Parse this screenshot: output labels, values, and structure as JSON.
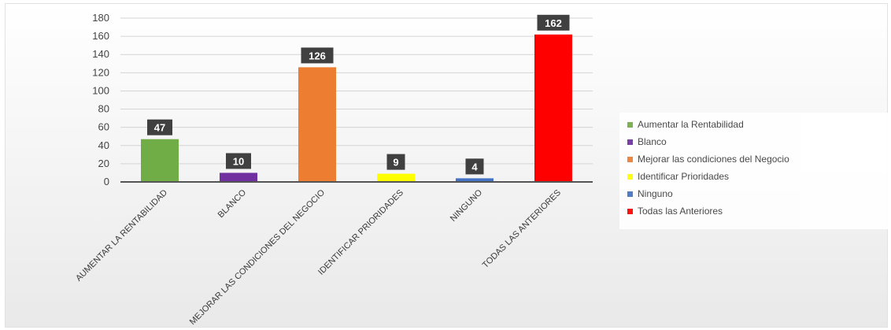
{
  "chart_data": {
    "type": "bar",
    "categories": [
      "AUMENTAR LA RENTABILIDAD",
      "BLANCO",
      "MEJORAR LAS CONDICIONES DEL NEGOCIO",
      "IDENTIFICAR PRIORIDADES",
      "NINGUNO",
      "TODAS LAS ANTERIORES"
    ],
    "values": [
      47,
      10,
      126,
      9,
      4,
      162
    ],
    "colors": [
      "#70ad47",
      "#7030a0",
      "#ed7d31",
      "#ffff00",
      "#4472c4",
      "#ff0000"
    ],
    "ylim": [
      0,
      180
    ],
    "yticks": [
      0,
      20,
      40,
      60,
      80,
      100,
      120,
      140,
      160,
      180
    ],
    "ytick_labels": [
      "0",
      "20",
      "40",
      "60",
      "80",
      "100",
      "120",
      "140",
      "160",
      "180"
    ],
    "data_labels": [
      "47",
      "10",
      "126",
      "9",
      "4",
      "162"
    ],
    "grid": true,
    "legend": {
      "position": "right",
      "entries": [
        {
          "label": "Aumentar la Rentabilidad",
          "color": "#70ad47"
        },
        {
          "label": "Blanco",
          "color": "#7030a0"
        },
        {
          "label": "Mejorar las condiciones del Negocio",
          "color": "#ed7d31"
        },
        {
          "label": "Identificar Prioridades",
          "color": "#ffff00"
        },
        {
          "label": "Ninguno",
          "color": "#4472c4"
        },
        {
          "label": "Todas las Anteriores",
          "color": "#ff0000"
        }
      ]
    },
    "title": "",
    "xlabel": "",
    "ylabel": ""
  }
}
